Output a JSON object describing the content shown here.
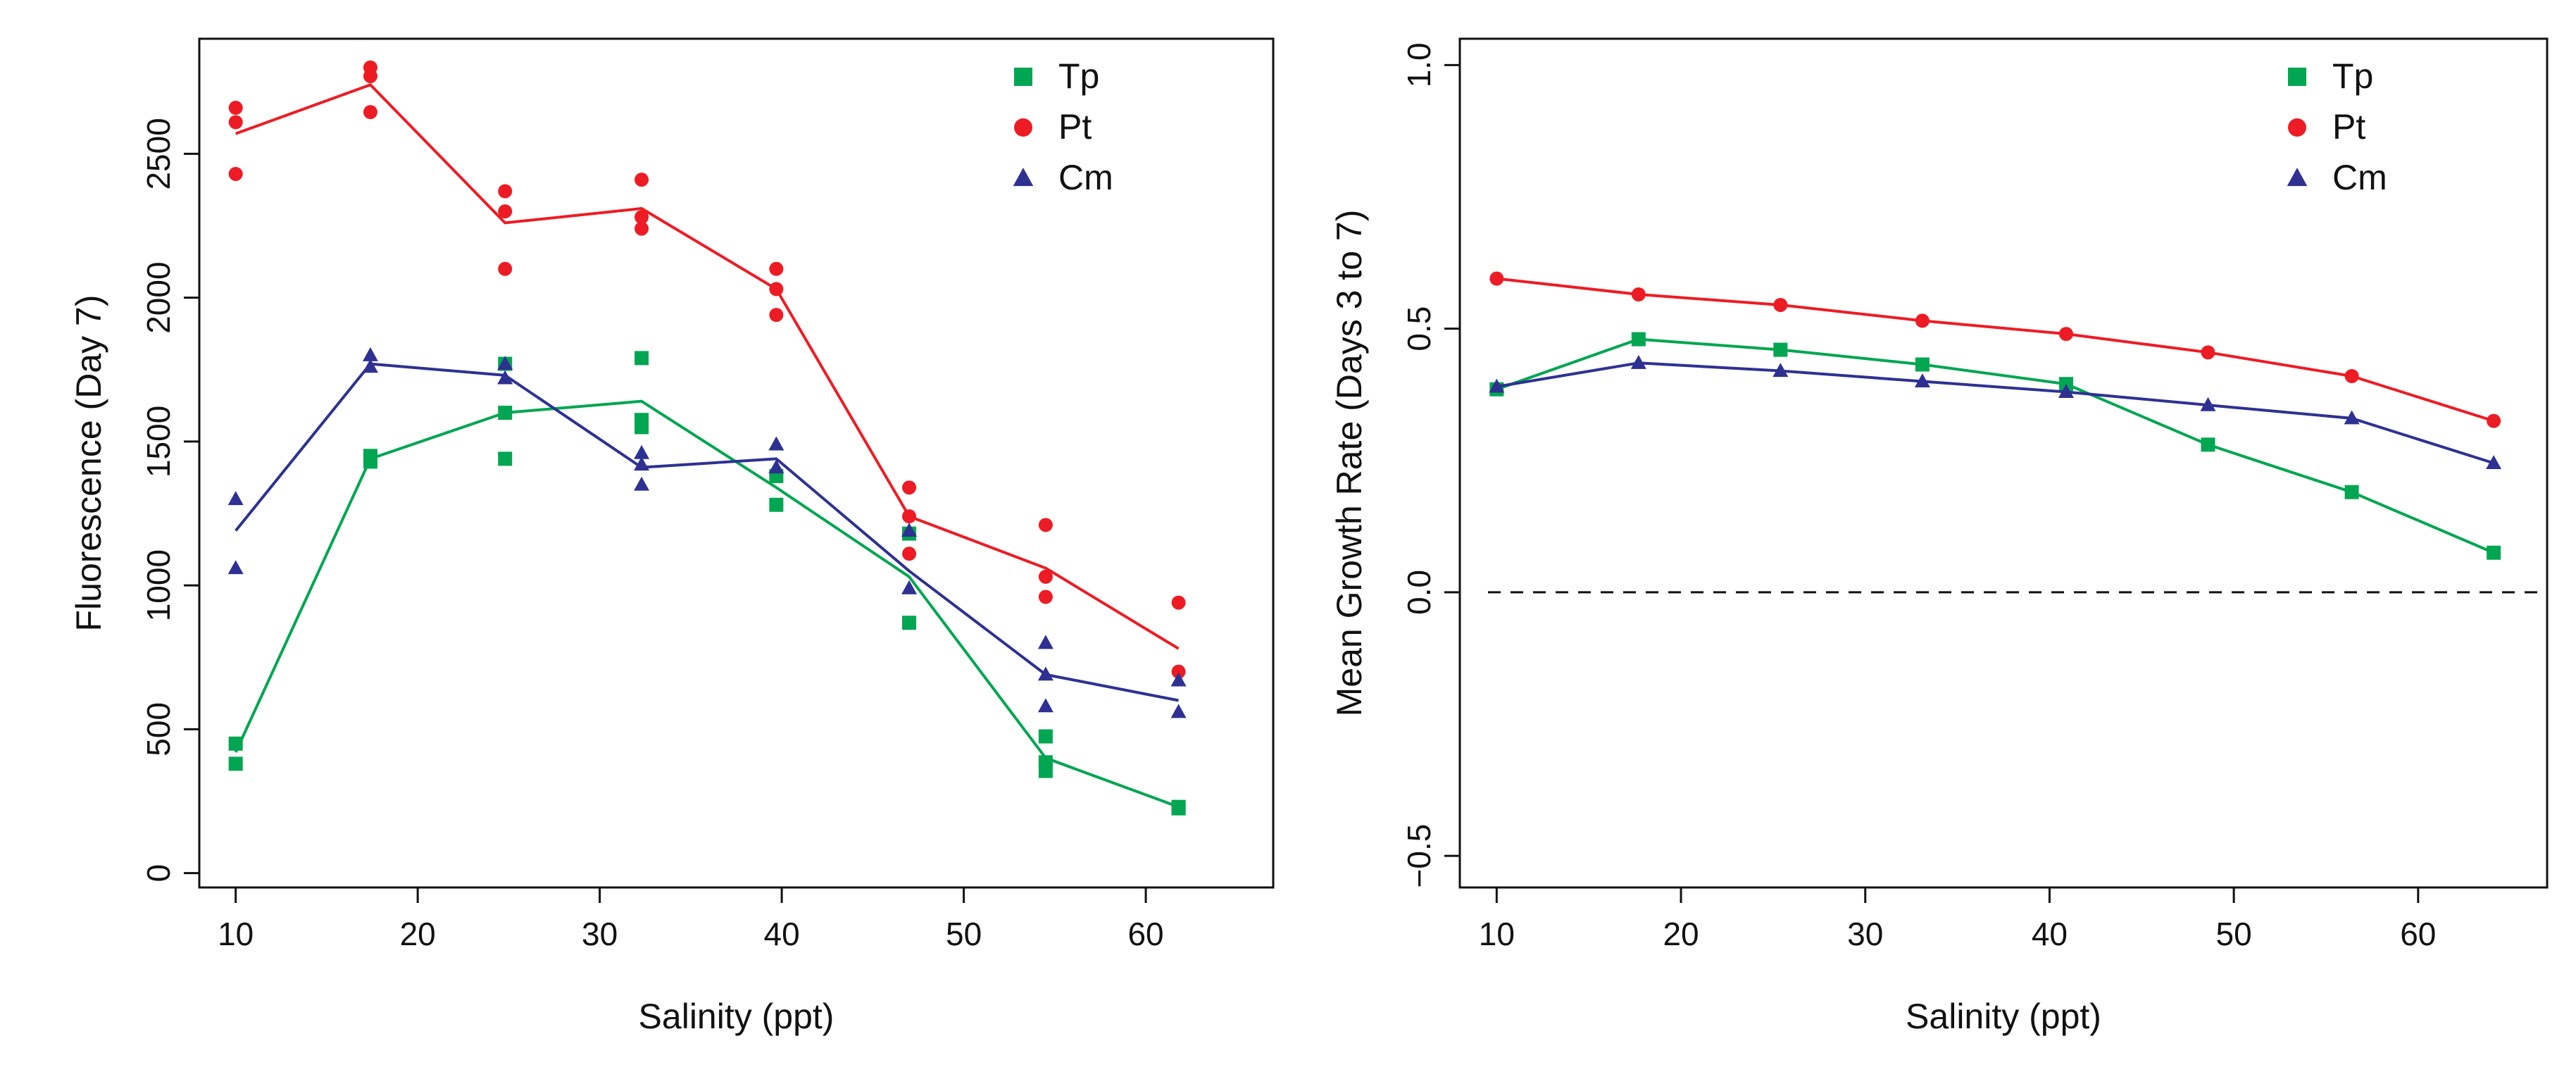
{
  "colors": {
    "Tp": "#00a651",
    "Pt": "#ed1c24",
    "Cm": "#2e3192",
    "axis": "#111111"
  },
  "chart_data": [
    {
      "type": "line",
      "name": "fluorescence-day7",
      "xlabel": "Salinity (ppt)",
      "ylabel": "Fluorescence (Day 7)",
      "xlim": [
        8,
        67
      ],
      "ylim": [
        -50,
        2900
      ],
      "xticks": [
        10,
        20,
        30,
        40,
        50,
        60
      ],
      "yticks": [
        0,
        500,
        1000,
        1500,
        2000,
        2500
      ],
      "legend": {
        "position": "top-right",
        "entries": [
          "Tp",
          "Pt",
          "Cm"
        ]
      },
      "series": [
        {
          "name": "Tp",
          "marker": "square",
          "line": {
            "x": [
              10,
              17.4,
              24.8,
              32.3,
              39.7,
              47,
              54.5,
              61.8
            ],
            "y": [
              420,
              1440,
              1600,
              1640,
              1340,
              1030,
              400,
              230
            ]
          },
          "points": {
            "x": [
              10,
              10,
              17.4,
              17.4,
              24.8,
              24.8,
              24.8,
              32.3,
              32.3,
              32.3,
              39.7,
              39.7,
              47,
              47,
              54.5,
              54.5,
              54.5,
              61.8,
              61.8
            ],
            "y": [
              450,
              380,
              1450,
              1430,
              1770,
              1600,
              1440,
              1790,
              1575,
              1550,
              1380,
              1280,
              1180,
              870,
              475,
              385,
              355,
              230,
              225
            ]
          }
        },
        {
          "name": "Pt",
          "marker": "circle",
          "line": {
            "x": [
              10,
              17.4,
              24.8,
              32.3,
              39.7,
              47,
              54.5,
              61.8
            ],
            "y": [
              2570,
              2740,
              2260,
              2310,
              2030,
              1240,
              1060,
              780
            ]
          },
          "points": {
            "x": [
              10,
              10,
              10,
              17.4,
              17.4,
              17.4,
              24.8,
              24.8,
              24.8,
              32.3,
              32.3,
              32.3,
              39.7,
              39.7,
              39.7,
              47,
              47,
              47,
              54.5,
              54.5,
              54.5,
              61.8,
              61.8
            ],
            "y": [
              2660,
              2610,
              2430,
              2800,
              2770,
              2645,
              2370,
              2300,
              2100,
              2410,
              2280,
              2240,
              2100,
              2030,
              1940,
              1340,
              1240,
              1110,
              1210,
              1030,
              960,
              940,
              700
            ]
          }
        },
        {
          "name": "Cm",
          "marker": "triangle",
          "line": {
            "x": [
              10,
              17.4,
              24.8,
              32.3,
              39.7,
              47,
              54.5,
              61.8
            ],
            "y": [
              1190,
              1770,
              1730,
              1410,
              1440,
              1050,
              690,
              600
            ]
          },
          "points": {
            "x": [
              10,
              10,
              17.4,
              17.4,
              24.8,
              24.8,
              32.3,
              32.3,
              32.3,
              39.7,
              39.7,
              47,
              47,
              54.5,
              54.5,
              54.5,
              61.8,
              61.8
            ],
            "y": [
              1300,
              1060,
              1800,
              1760,
              1720,
              1770,
              1460,
              1350,
              1420,
              1490,
              1410,
              1190,
              990,
              800,
              580,
              690,
              670,
              560
            ]
          }
        }
      ]
    },
    {
      "type": "line",
      "name": "mean-growth-rate",
      "xlabel": "Salinity (ppt)",
      "ylabel": "Mean Growth Rate (Days 3 to 7)",
      "xlim": [
        8,
        67
      ],
      "ylim": [
        -0.56,
        1.05
      ],
      "xticks": [
        10,
        20,
        30,
        40,
        50,
        60
      ],
      "yticks": [
        -0.5,
        0.0,
        0.5,
        1.0
      ],
      "ytick_labels": [
        "−0.5",
        "0.0",
        "0.5",
        "1.0"
      ],
      "reference_line": {
        "y": 0.0,
        "style": "dashed"
      },
      "legend": {
        "position": "top-right",
        "entries": [
          "Tp",
          "Pt",
          "Cm"
        ]
      },
      "series": [
        {
          "name": "Tp",
          "marker": "square",
          "line": {
            "x": [
              10,
              17.7,
              25.4,
              33.1,
              40.9,
              48.6,
              56.4,
              64.1
            ],
            "y": [
              0.385,
              0.48,
              0.46,
              0.432,
              0.395,
              0.28,
              0.19,
              0.075
            ]
          },
          "points": {
            "x": [
              10,
              17.7,
              25.4,
              33.1,
              40.9,
              48.6,
              56.4,
              64.1
            ],
            "y": [
              0.385,
              0.48,
              0.46,
              0.432,
              0.395,
              0.28,
              0.19,
              0.075
            ]
          }
        },
        {
          "name": "Pt",
          "marker": "circle",
          "line": {
            "x": [
              10,
              17.7,
              25.4,
              33.1,
              40.9,
              48.6,
              56.4,
              64.1
            ],
            "y": [
              0.595,
              0.565,
              0.545,
              0.515,
              0.49,
              0.455,
              0.41,
              0.325
            ]
          },
          "points": {
            "x": [
              10,
              17.7,
              25.4,
              33.1,
              40.9,
              48.6,
              56.4,
              64.1
            ],
            "y": [
              0.595,
              0.565,
              0.545,
              0.515,
              0.49,
              0.455,
              0.41,
              0.325
            ]
          }
        },
        {
          "name": "Cm",
          "marker": "triangle",
          "line": {
            "x": [
              10,
              17.7,
              25.4,
              33.1,
              40.9,
              48.6,
              56.4,
              64.1
            ],
            "y": [
              0.39,
              0.435,
              0.42,
              0.4,
              0.38,
              0.355,
              0.33,
              0.245
            ]
          },
          "points": {
            "x": [
              10,
              17.7,
              25.4,
              33.1,
              40.9,
              48.6,
              56.4,
              64.1
            ],
            "y": [
              0.39,
              0.435,
              0.42,
              0.4,
              0.38,
              0.355,
              0.33,
              0.245
            ]
          }
        }
      ]
    }
  ]
}
